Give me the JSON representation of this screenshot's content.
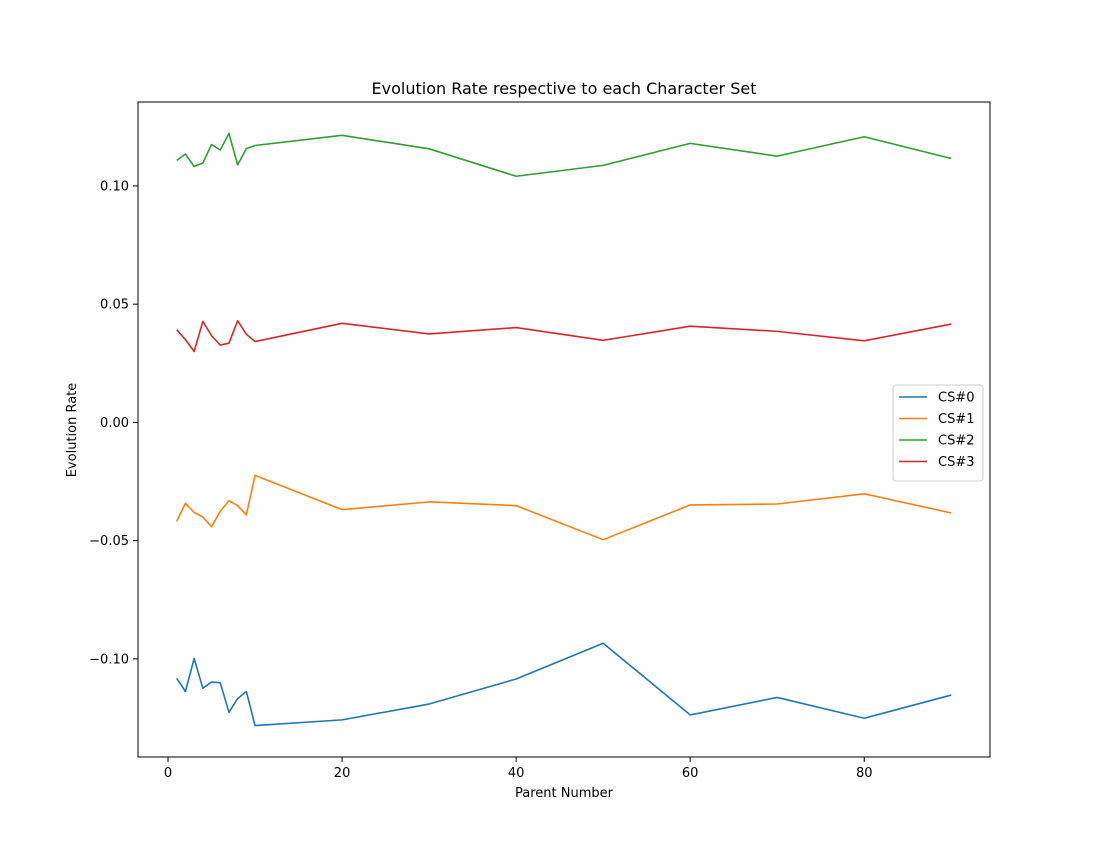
{
  "chart_data": {
    "type": "line",
    "title": "Evolution Rate respective to each Character Set",
    "xlabel": "Parent Number",
    "ylabel": "Evolution Rate",
    "xlim": [
      -3.45,
      94.45
    ],
    "ylim": [
      -0.1415,
      0.1355
    ],
    "xticks": [
      0,
      20,
      40,
      60,
      80
    ],
    "xtick_labels": [
      "0",
      "20",
      "40",
      "60",
      "80"
    ],
    "yticks": [
      -0.1,
      -0.05,
      0.0,
      0.05,
      0.1
    ],
    "ytick_labels": [
      "−0.10",
      "−0.05",
      "0.00",
      "0.05",
      "0.10"
    ],
    "grid": false,
    "legend_position": "center-right",
    "x": [
      1,
      2,
      3,
      4,
      5,
      6,
      7,
      8,
      9,
      10,
      20,
      30,
      40,
      50,
      60,
      70,
      80,
      90
    ],
    "series": [
      {
        "name": "CS#0",
        "color": "#1f77b4",
        "values": [
          -0.1082,
          -0.1138,
          -0.0998,
          -0.1124,
          -0.1098,
          -0.1101,
          -0.1226,
          -0.1168,
          -0.1138,
          -0.1282,
          -0.1258,
          -0.1191,
          -0.1085,
          -0.0934,
          -0.1237,
          -0.1163,
          -0.1251,
          -0.1153
        ]
      },
      {
        "name": "CS#1",
        "color": "#ff7f0e",
        "values": [
          -0.0418,
          -0.0342,
          -0.0381,
          -0.04,
          -0.0441,
          -0.0376,
          -0.0331,
          -0.0352,
          -0.0391,
          -0.0224,
          -0.0369,
          -0.0336,
          -0.0352,
          -0.0496,
          -0.0349,
          -0.0345,
          -0.0302,
          -0.0383
        ]
      },
      {
        "name": "CS#2",
        "color": "#2ca02c",
        "values": [
          0.1108,
          0.1135,
          0.1082,
          0.1097,
          0.1175,
          0.1152,
          0.1222,
          0.1089,
          0.1158,
          0.1171,
          0.1214,
          0.1157,
          0.1041,
          0.1087,
          0.118,
          0.1126,
          0.1208,
          0.1116
        ]
      },
      {
        "name": "CS#3",
        "color": "#d62728",
        "values": [
          0.0392,
          0.035,
          0.03,
          0.0427,
          0.0367,
          0.0327,
          0.0335,
          0.043,
          0.0373,
          0.0342,
          0.0419,
          0.0374,
          0.0401,
          0.0347,
          0.0407,
          0.0385,
          0.0345,
          0.0416
        ]
      }
    ]
  }
}
